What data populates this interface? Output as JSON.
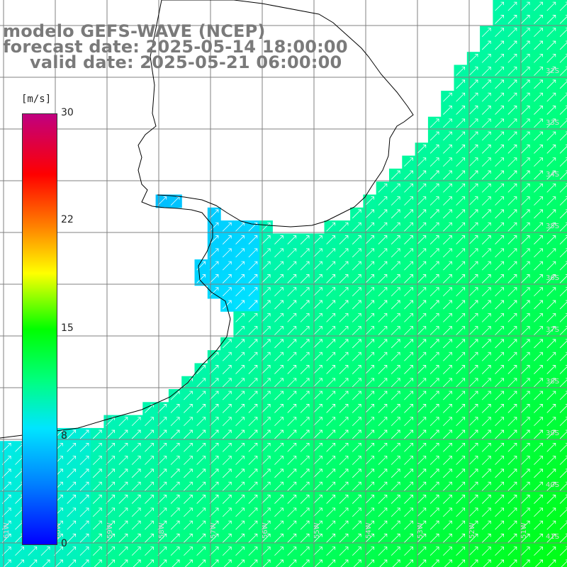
{
  "titles": {
    "model": "modelo GEFS-WAVE (NCEP)",
    "forecast": "forecast date: 2025-05-14 18:00:00",
    "valid": "valid date: 2025-05-21 06:00:00"
  },
  "colorbar": {
    "unit": "[m/s]",
    "ticks": [
      "30",
      "22",
      "15",
      "8",
      "0"
    ],
    "colors": [
      "#0000ff",
      "#0080ff",
      "#00e5ff",
      "#00ff80",
      "#00ff00",
      "#ffff00",
      "#ff8000",
      "#ff0000",
      "#c00080"
    ]
  },
  "lat_labels": [
    "32S",
    "33S",
    "34S",
    "35S",
    "36S",
    "37S",
    "38S",
    "39S",
    "40S",
    "41S"
  ],
  "lon_labels": [
    "61W",
    "60W",
    "59W",
    "58W",
    "57W",
    "56W",
    "55W",
    "54W",
    "53W",
    "52W",
    "51W"
  ],
  "colors": {
    "land": "#ffffff",
    "grid": "#808080",
    "coast": "#000000",
    "arrow": "#ffffff"
  },
  "wind_direction": "south-west to north-east"
}
